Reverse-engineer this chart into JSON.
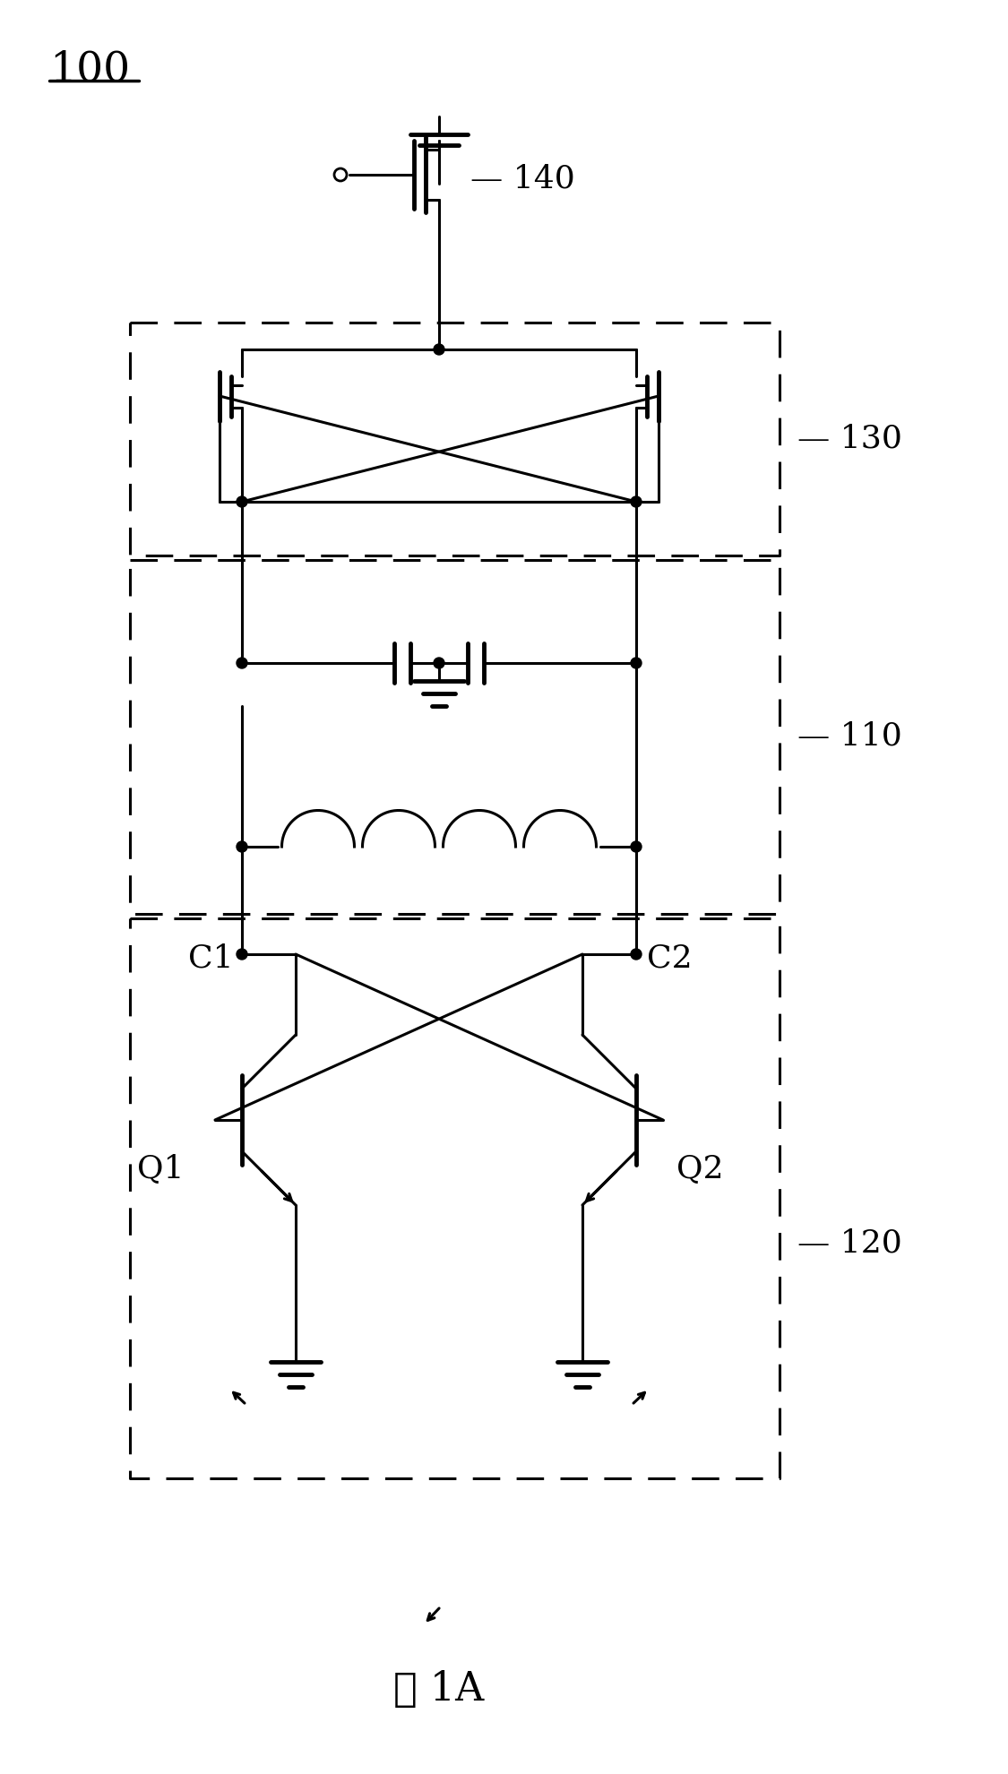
{
  "title": "图 1A",
  "label_100": "100",
  "label_130": "130",
  "label_140": "140",
  "label_110": "110",
  "label_120": "120",
  "label_C1": "C1",
  "label_C2": "C2",
  "label_Q1": "Q1",
  "label_Q2": "Q2",
  "bg_color": "#ffffff",
  "line_color": "#000000",
  "lw": 2.2,
  "lw_thick": 3.5
}
